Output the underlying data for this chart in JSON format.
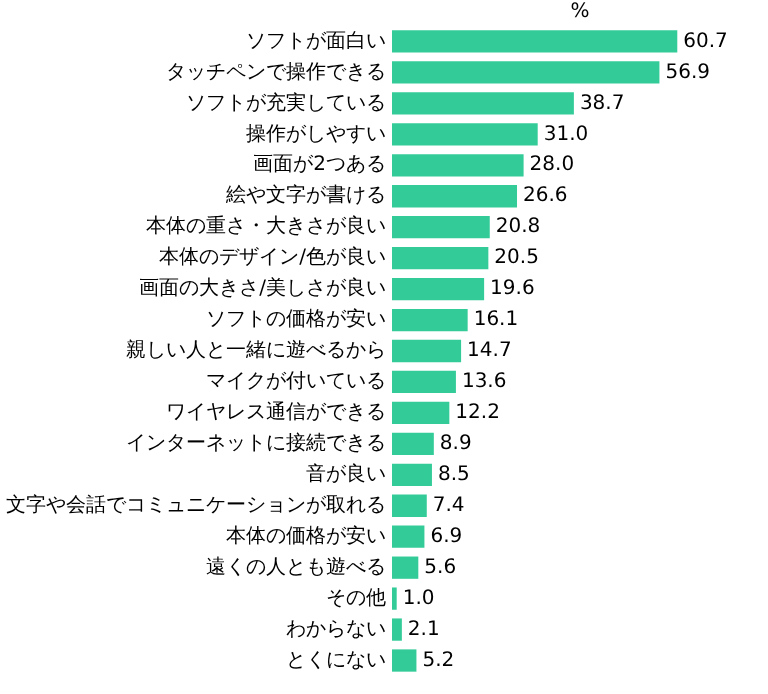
{
  "chart_data": {
    "type": "bar",
    "orientation": "horizontal",
    "xlabel": "%",
    "categories": [
      "ソフトが面白い",
      "タッチペンで操作できる",
      "ソフトが充実している",
      "操作がしやすい",
      "画面が2つある",
      "絵や文字が書ける",
      "本体の重さ・大きさが良い",
      "本体のデザイン/色が良い",
      "画面の大きさ/美しさが良い",
      "ソフトの価格が安い",
      "親しい人と一緒に遊べるから",
      "マイクが付いている",
      "ワイヤレス通信ができる",
      "インターネットに接続できる",
      "音が良い",
      "文字や会話でコミュニケーションが取れる",
      "本体の価格が安い",
      "遠くの人とも遊べる",
      "その他",
      "わからない",
      "とくにない"
    ],
    "values": [
      60.7,
      56.9,
      38.7,
      31.0,
      28.0,
      26.6,
      20.8,
      20.5,
      19.6,
      16.1,
      14.7,
      13.6,
      12.2,
      8.9,
      8.5,
      7.4,
      6.9,
      5.6,
      1.0,
      2.1,
      5.2
    ],
    "value_labels": [
      "60.7",
      "56.9",
      "38.7",
      "31.0",
      "28.0",
      "26.6",
      "20.8",
      "20.5",
      "19.6",
      "16.1",
      "14.7",
      "13.6",
      "12.2",
      "8.9",
      "8.5",
      "7.4",
      "6.9",
      "5.6",
      "1.0",
      "2.1",
      "5.2"
    ],
    "color": "#33cc99"
  }
}
